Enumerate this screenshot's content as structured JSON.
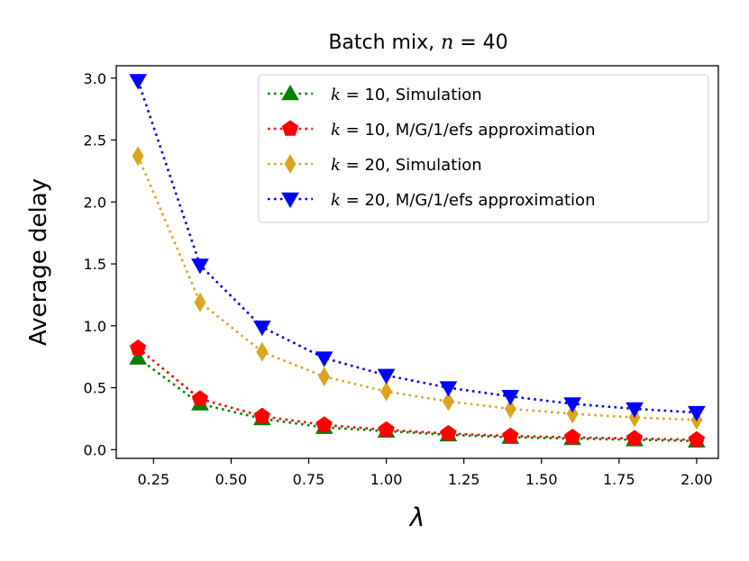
{
  "chart_data": {
    "type": "line",
    "title_prefix": "Batch mix, ",
    "title_var": "n",
    "title_suffix": " = 40",
    "title": "Batch mix, n = 40",
    "xlabel": "λ",
    "ylabel": "Average delay",
    "xlim": [
      0.13,
      2.07
    ],
    "ylim": [
      -0.07,
      3.1
    ],
    "xticks": [
      "0.25",
      "0.50",
      "0.75",
      "1.00",
      "1.25",
      "1.50",
      "1.75",
      "2.00"
    ],
    "yticks": [
      "0.0",
      "0.5",
      "1.0",
      "1.5",
      "2.0",
      "2.5",
      "3.0"
    ],
    "x": [
      0.2,
      0.4,
      0.6,
      0.8,
      1.0,
      1.2,
      1.4,
      1.6,
      1.8,
      2.0
    ],
    "legend_position": "top-right",
    "series": [
      {
        "name": "k = 10, Simulation",
        "legend_var": "k",
        "legend_eq": " = 10, ",
        "legend_desc": "Simulation",
        "color": "#008000",
        "marker": "triangle-up",
        "values": [
          0.74,
          0.37,
          0.25,
          0.18,
          0.15,
          0.12,
          0.1,
          0.09,
          0.08,
          0.07
        ]
      },
      {
        "name": "k = 10, M/G/1/efs approximation",
        "legend_var": "k",
        "legend_eq": " = 10, ",
        "legend_desc": "M/G/1/efs approximation",
        "color": "#ff0000",
        "marker": "pentagon",
        "values": [
          0.82,
          0.41,
          0.27,
          0.2,
          0.16,
          0.13,
          0.11,
          0.1,
          0.09,
          0.08
        ]
      },
      {
        "name": "k = 20, Simulation",
        "legend_var": "k",
        "legend_eq": " = 20, ",
        "legend_desc": "Simulation",
        "color": "#daa520",
        "marker": "thin-diamond",
        "values": [
          2.37,
          1.19,
          0.79,
          0.59,
          0.47,
          0.39,
          0.33,
          0.29,
          0.26,
          0.24
        ]
      },
      {
        "name": "k = 20, M/G/1/efs approximation",
        "legend_var": "k",
        "legend_eq": " = 20, ",
        "legend_desc": "M/G/1/efs approximation",
        "color": "#0000ff",
        "marker": "triangle-down",
        "values": [
          2.98,
          1.49,
          0.99,
          0.74,
          0.6,
          0.5,
          0.43,
          0.37,
          0.33,
          0.3
        ]
      }
    ]
  }
}
